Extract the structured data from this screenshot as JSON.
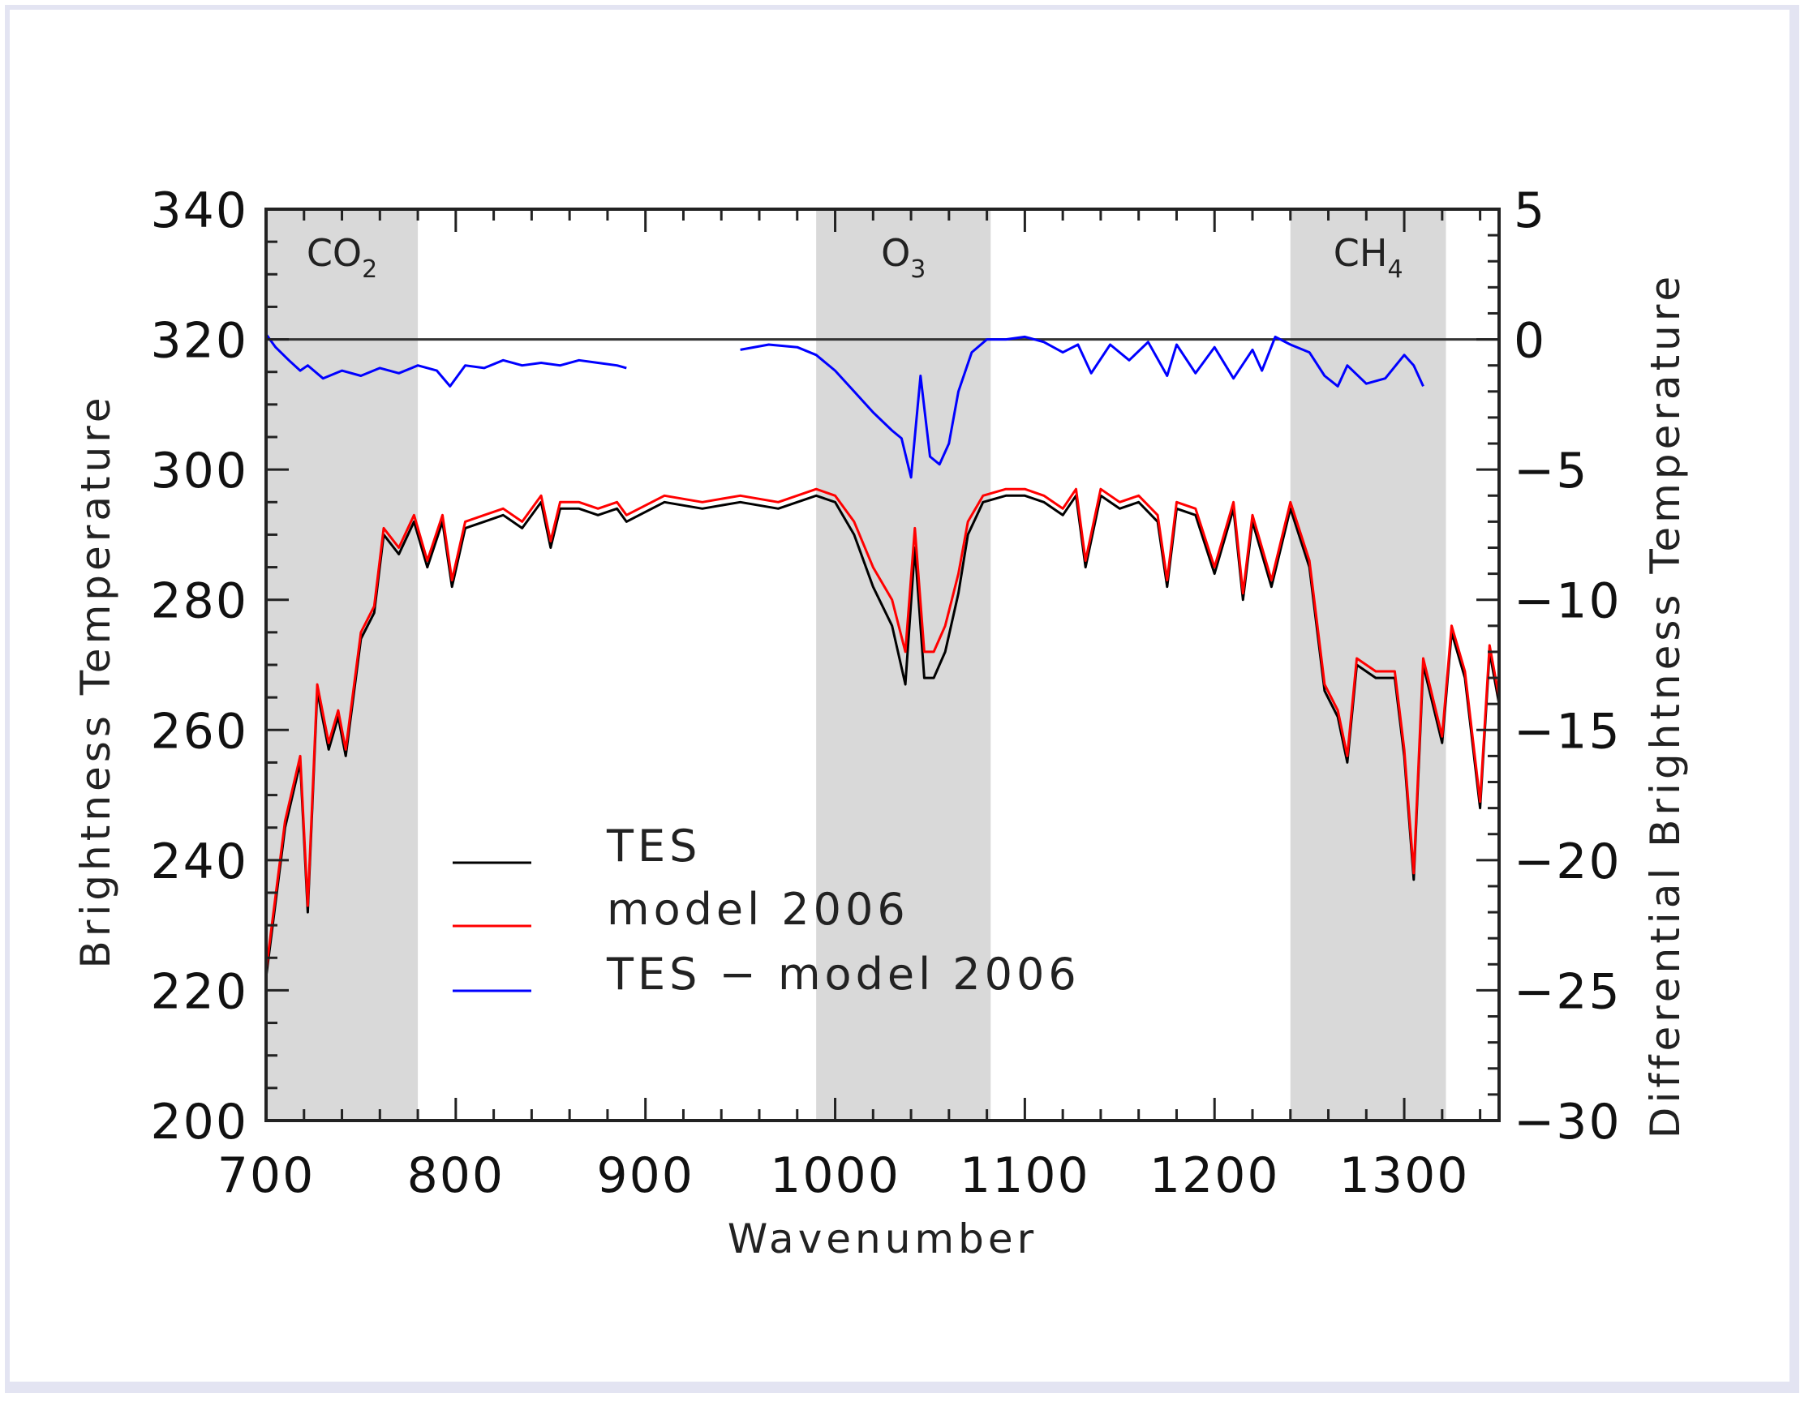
{
  "chart_data": {
    "type": "line",
    "xlabel": "Wavenumber",
    "ylabel": "Brightness Temperature",
    "y2label": "Differential Brightness Temperature",
    "xlim": [
      700,
      1350
    ],
    "ylim": [
      200,
      340
    ],
    "y2lim": [
      -30,
      5
    ],
    "xticks": [
      "700",
      "800",
      "900",
      "1000",
      "1100",
      "1200",
      "1300"
    ],
    "yticks": [
      "200",
      "220",
      "240",
      "260",
      "280",
      "300",
      "320",
      "340"
    ],
    "y2ticks": [
      "−30",
      "−25",
      "−20",
      "−15",
      "−10",
      "−5",
      "0",
      "5"
    ],
    "bands": [
      {
        "x": [
          700,
          780
        ],
        "label": "CO",
        "sub": "2"
      },
      {
        "x": [
          990,
          1082
        ],
        "label": "O",
        "sub": "3"
      },
      {
        "x": [
          1240,
          1322
        ],
        "label": "CH",
        "sub": "4"
      }
    ],
    "series": [
      {
        "name": "TES",
        "color": "#000000",
        "axis": "left",
        "x": [
          700,
          710,
          718,
          722,
          727,
          733,
          738,
          742,
          750,
          757,
          762,
          770,
          778,
          785,
          793,
          798,
          805,
          815,
          825,
          835,
          845,
          850,
          855,
          865,
          875,
          885,
          890,
          910,
          930,
          950,
          970,
          990,
          1000,
          1010,
          1020,
          1030,
          1037,
          1042,
          1047,
          1052,
          1058,
          1065,
          1070,
          1078,
          1090,
          1100,
          1110,
          1120,
          1127,
          1132,
          1140,
          1150,
          1160,
          1170,
          1175,
          1180,
          1190,
          1200,
          1210,
          1215,
          1220,
          1230,
          1240,
          1250,
          1258,
          1265,
          1270,
          1275,
          1285,
          1295,
          1300,
          1305,
          1310,
          1320,
          1325,
          1332,
          1340,
          1345,
          1350
        ],
        "y": [
          222,
          245,
          255,
          232,
          266,
          257,
          262,
          256,
          274,
          278,
          290,
          287,
          292,
          285,
          292,
          282,
          291,
          292,
          293,
          291,
          295,
          288,
          294,
          294,
          293,
          294,
          292,
          295,
          294,
          295,
          294,
          296,
          295,
          290,
          282,
          276,
          267,
          288,
          268,
          268,
          272,
          281,
          290,
          295,
          296,
          296,
          295,
          293,
          296,
          285,
          296,
          294,
          295,
          292,
          282,
          294,
          293,
          284,
          294,
          280,
          292,
          282,
          294,
          285,
          266,
          262,
          255,
          270,
          268,
          268,
          256,
          237,
          270,
          258,
          275,
          268,
          248,
          272,
          264
        ]
      },
      {
        "name": "model 2006",
        "color": "#ff0000",
        "axis": "left",
        "x": [
          700,
          710,
          718,
          722,
          727,
          733,
          738,
          742,
          750,
          757,
          762,
          770,
          778,
          785,
          793,
          798,
          805,
          815,
          825,
          835,
          845,
          850,
          855,
          865,
          875,
          885,
          890,
          910,
          930,
          950,
          970,
          990,
          1000,
          1010,
          1020,
          1030,
          1037,
          1042,
          1047,
          1052,
          1058,
          1065,
          1070,
          1078,
          1090,
          1100,
          1110,
          1120,
          1127,
          1132,
          1140,
          1150,
          1160,
          1170,
          1175,
          1180,
          1190,
          1200,
          1210,
          1215,
          1220,
          1230,
          1240,
          1250,
          1258,
          1265,
          1270,
          1275,
          1285,
          1295,
          1300,
          1305,
          1310,
          1320,
          1325,
          1332,
          1340,
          1345,
          1350
        ],
        "y": [
          223,
          246,
          256,
          233,
          267,
          258,
          263,
          257,
          275,
          279,
          291,
          288,
          293,
          286,
          293,
          283,
          292,
          293,
          294,
          292,
          296,
          289,
          295,
          295,
          294,
          295,
          293,
          296,
          295,
          296,
          295,
          297,
          296,
          292,
          285,
          280,
          272,
          291,
          272,
          272,
          276,
          284,
          292,
          296,
          297,
          297,
          296,
          294,
          297,
          286,
          297,
          295,
          296,
          293,
          283,
          295,
          294,
          285,
          295,
          281,
          293,
          283,
          295,
          286,
          267,
          263,
          256,
          271,
          269,
          269,
          257,
          238,
          271,
          259,
          276,
          269,
          249,
          273,
          265
        ]
      },
      {
        "name": "TES − model 2006",
        "color": "#0000ff",
        "axis": "right",
        "x": [
          700,
          705,
          712,
          718,
          722,
          730,
          740,
          750,
          760,
          770,
          780,
          790,
          797,
          805,
          815,
          825,
          835,
          845,
          855,
          865,
          875,
          885,
          890,
          null,
          950,
          965,
          980,
          990,
          1000,
          1010,
          1020,
          1030,
          1035,
          1040,
          1045,
          1050,
          1055,
          1060,
          1065,
          1072,
          1080,
          1090,
          1100,
          1110,
          1120,
          1128,
          1135,
          1145,
          1155,
          1165,
          1175,
          1180,
          1190,
          1200,
          1210,
          1220,
          1225,
          1232,
          1240,
          1250,
          1258,
          1265,
          1270,
          1280,
          1290,
          1300,
          1305,
          1310
        ],
        "y": [
          0.2,
          -0.3,
          -0.8,
          -1.2,
          -1.0,
          -1.5,
          -1.2,
          -1.4,
          -1.1,
          -1.3,
          -1.0,
          -1.2,
          -1.8,
          -1.0,
          -1.1,
          -0.8,
          -1.0,
          -0.9,
          -1.0,
          -0.8,
          -0.9,
          -1.0,
          -1.1,
          null,
          -0.4,
          -0.2,
          -0.3,
          -0.6,
          -1.2,
          -2.0,
          -2.8,
          -3.5,
          -3.8,
          -5.3,
          -1.4,
          -4.5,
          -4.8,
          -4.0,
          -2.0,
          -0.5,
          0.0,
          0.0,
          0.1,
          -0.1,
          -0.5,
          -0.2,
          -1.3,
          -0.2,
          -0.8,
          -0.1,
          -1.4,
          -0.2,
          -1.3,
          -0.3,
          -1.5,
          -0.4,
          -1.2,
          0.1,
          -0.2,
          -0.5,
          -1.4,
          -1.8,
          -1.0,
          -1.7,
          -1.5,
          -0.6,
          -1.0,
          -1.8
        ]
      }
    ]
  }
}
